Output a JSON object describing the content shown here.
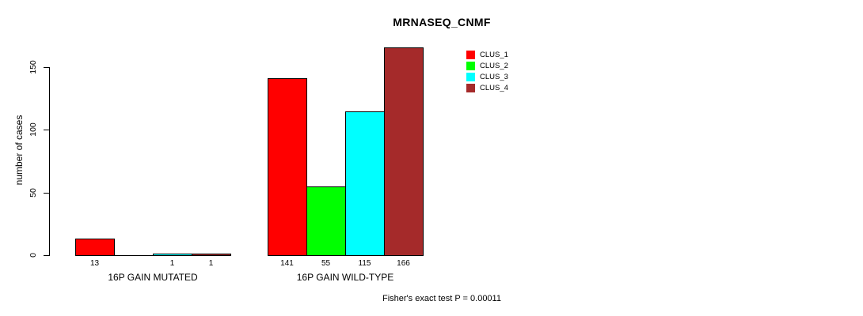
{
  "title": "MRNASEQ_CNMF",
  "ylabel": "number of cases",
  "footer": "Fisher's exact test P = 0.00011",
  "legend": [
    {
      "label": "CLUS_1",
      "color": "#ff0000"
    },
    {
      "label": "CLUS_2",
      "color": "#00ff00"
    },
    {
      "label": "CLUS_3",
      "color": "#00ffff"
    },
    {
      "label": "CLUS_4",
      "color": "#a52a2a"
    }
  ],
  "chart_data": {
    "type": "bar",
    "title": "MRNASEQ_CNMF",
    "xlabel": "",
    "ylabel": "number of cases",
    "ylim": [
      0,
      150
    ],
    "yticks": [
      "0",
      "50",
      "100",
      "150"
    ],
    "grid": false,
    "legend_position": "top-right",
    "categories": [
      "16P GAIN MUTATED",
      "16P GAIN WILD-TYPE"
    ],
    "series": [
      {
        "name": "CLUS_1",
        "color": "#ff0000",
        "values": [
          13,
          141
        ]
      },
      {
        "name": "CLUS_2",
        "color": "#00ff00",
        "values": [
          0,
          55
        ]
      },
      {
        "name": "CLUS_3",
        "color": "#00ffff",
        "values": [
          1,
          115
        ]
      },
      {
        "name": "CLUS_4",
        "color": "#a52a2a",
        "values": [
          1,
          166
        ]
      }
    ],
    "bar_value_labels": [
      [
        "13",
        "",
        "1",
        "1"
      ],
      [
        "141",
        "55",
        "115",
        "166"
      ]
    ],
    "annotation": "Fisher's exact test P = 0.00011"
  }
}
